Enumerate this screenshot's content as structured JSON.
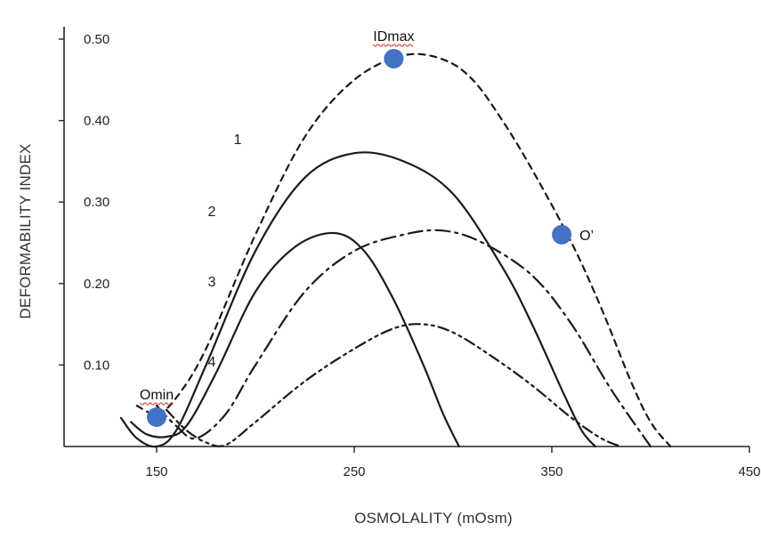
{
  "chart_data": {
    "type": "line",
    "title": "",
    "xlabel": "OSMOLALITY (mOsm)",
    "ylabel": "DEFORMABILITY INDEX",
    "xlim": [
      100,
      450
    ],
    "ylim": [
      0,
      0.52
    ],
    "x_ticks": [
      150,
      250,
      350,
      450
    ],
    "x_tick_labels": [
      "150",
      "250",
      "350",
      "450"
    ],
    "y_ticks": [
      0.1,
      0.2,
      0.3,
      0.4,
      0.5
    ],
    "y_tick_labels": [
      "0.10",
      "0.20",
      "0.30",
      "0.40",
      "0.50"
    ],
    "grid": false,
    "legend": "none",
    "series": [
      {
        "label": "",
        "style": "dashed",
        "x": [
          140,
          150,
          160,
          175,
          200,
          225,
          250,
          275,
          295,
          310,
          325,
          340,
          360,
          375,
          390,
          400,
          410
        ],
        "y": [
          0.05,
          0.04,
          0.06,
          0.12,
          0.26,
          0.38,
          0.45,
          0.48,
          0.475,
          0.45,
          0.4,
          0.34,
          0.25,
          0.17,
          0.08,
          0.03,
          0.0
        ]
      },
      {
        "label": "1",
        "style": "solid",
        "x": [
          132,
          140,
          150,
          160,
          175,
          200,
          225,
          250,
          275,
          300,
          325,
          340,
          355,
          365,
          372
        ],
        "y": [
          0.035,
          0.01,
          0.0,
          0.02,
          0.1,
          0.24,
          0.33,
          0.36,
          0.35,
          0.31,
          0.22,
          0.15,
          0.07,
          0.02,
          0.0
        ]
      },
      {
        "label": "2",
        "style": "solid",
        "x": [
          137,
          145,
          155,
          165,
          180,
          200,
          220,
          240,
          255,
          270,
          285,
          295,
          303
        ],
        "y": [
          0.03,
          0.015,
          0.012,
          0.025,
          0.09,
          0.19,
          0.245,
          0.262,
          0.24,
          0.18,
          0.1,
          0.04,
          0.0
        ]
      },
      {
        "label": "3",
        "style": "dash-dot",
        "x": [
          150,
          160,
          170,
          185,
          200,
          225,
          250,
          275,
          295,
          315,
          340,
          360,
          380,
          400
        ],
        "y": [
          0.05,
          0.025,
          0.01,
          0.04,
          0.1,
          0.19,
          0.24,
          0.26,
          0.265,
          0.25,
          0.21,
          0.15,
          0.07,
          0.0
        ]
      },
      {
        "label": "4",
        "style": "dash-dot-dot",
        "x": [
          155,
          165,
          175,
          185,
          200,
          225,
          250,
          270,
          285,
          300,
          320,
          340,
          360,
          375,
          385
        ],
        "y": [
          0.045,
          0.02,
          0.005,
          0.002,
          0.03,
          0.08,
          0.12,
          0.145,
          0.15,
          0.14,
          0.11,
          0.075,
          0.035,
          0.01,
          0.0
        ]
      }
    ],
    "markers": [
      {
        "label": "Omin",
        "x": 150,
        "y": 0.036,
        "label_position": "above"
      },
      {
        "label": "IDmax",
        "x": 270,
        "y": 0.476,
        "label_position": "above"
      },
      {
        "label": "O’",
        "x": 355,
        "y": 0.26,
        "label_position": "right"
      }
    ],
    "marker_color": "#4472c4"
  }
}
